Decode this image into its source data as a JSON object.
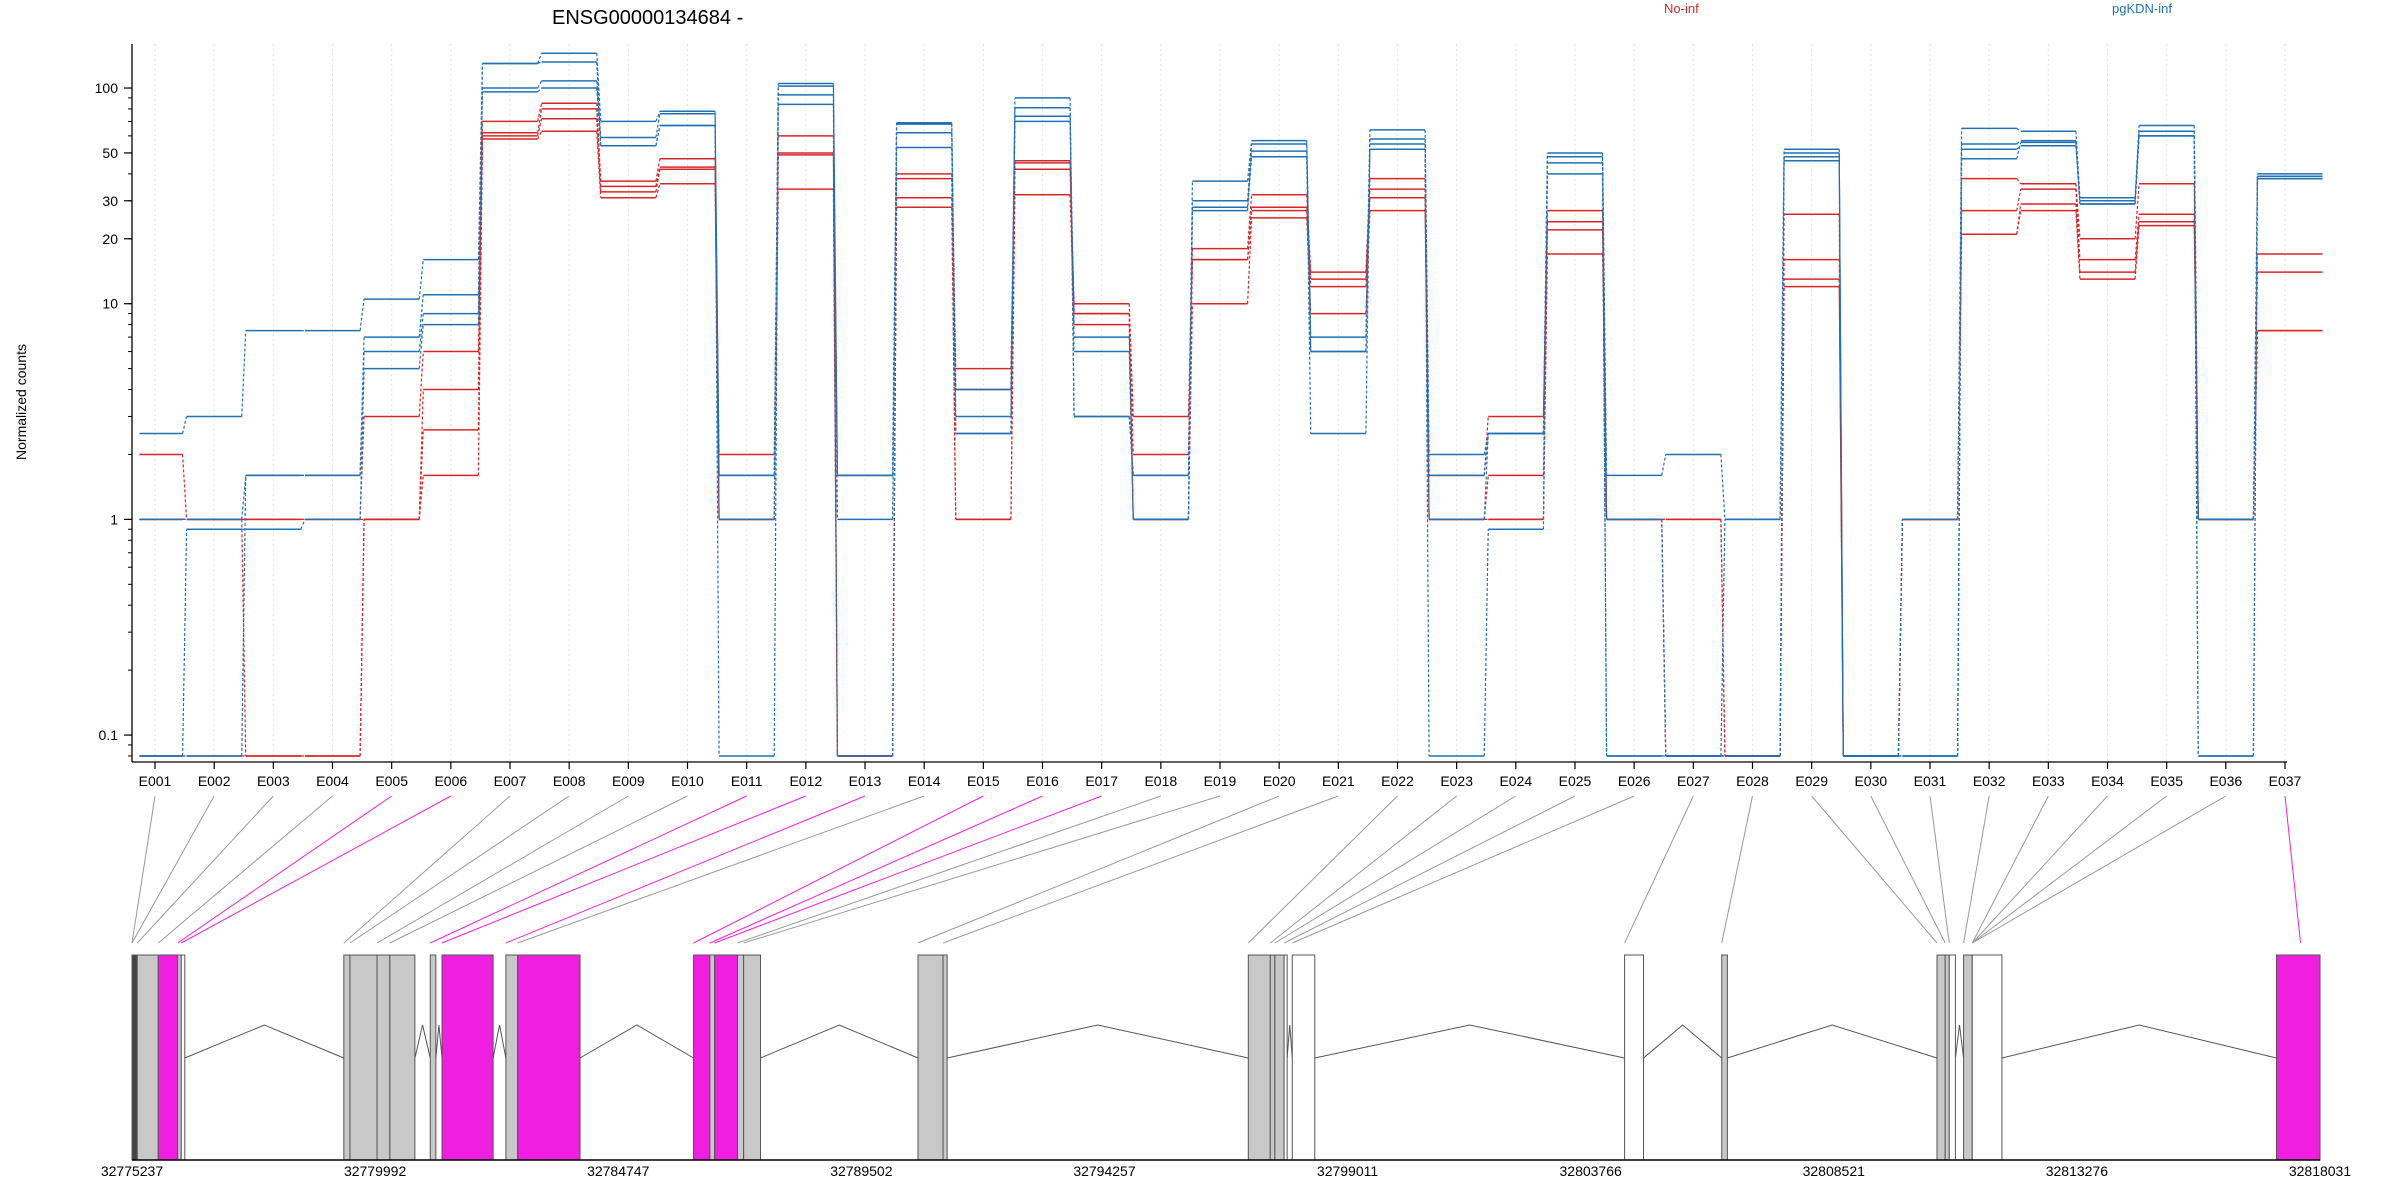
{
  "chart_data": {
    "type": "line",
    "title": "ENSG00000134684 -",
    "ylabel": "Normalized counts",
    "xlabel": "",
    "y_scale": "log",
    "ylim": [
      0.075,
      160
    ],
    "y_ticks": [
      0.1,
      1,
      10,
      20,
      30,
      50,
      100
    ],
    "y_tick_labels": [
      "0.1",
      "1",
      "10",
      "20",
      "30",
      "50",
      "100"
    ],
    "grid": "vertical dotted lines at each exon",
    "legend": [
      {
        "name": "No-inf",
        "color": "#d62728",
        "placement": "top"
      },
      {
        "name": "pgKDN-inf",
        "color": "#2171b5",
        "placement": "top-right"
      }
    ],
    "categories": [
      "E001",
      "E002",
      "E003",
      "E004",
      "E005",
      "E006",
      "E007",
      "E008",
      "E009",
      "E010",
      "E011",
      "E012",
      "E013",
      "E014",
      "E015",
      "E016",
      "E017",
      "E018",
      "E019",
      "E020",
      "E021",
      "E022",
      "E023",
      "E024",
      "E025",
      "E026",
      "E027",
      "E028",
      "E029",
      "E030",
      "E031",
      "E032",
      "E033",
      "E034",
      "E035",
      "E036",
      "E037"
    ],
    "series": [
      {
        "group": "No-inf",
        "color": "#d62728",
        "values": [
          2,
          1,
          1,
          1,
          3,
          6,
          70,
          85,
          37,
          47,
          2,
          60,
          1.6,
          40,
          5,
          46,
          10,
          3,
          18,
          32,
          14,
          38,
          1.6,
          3,
          27,
          1,
          1,
          0.08,
          26,
          0.08,
          1,
          38,
          36,
          20,
          36,
          1,
          17
        ]
      },
      {
        "group": "No-inf",
        "color": "#d62728",
        "values": [
          1,
          1,
          1,
          1,
          1,
          4,
          62,
          80,
          35,
          43,
          1,
          50,
          0.08,
          38,
          4,
          45,
          9,
          2,
          16,
          28,
          13,
          34,
          1,
          1.6,
          24,
          1,
          1,
          0.08,
          16,
          0.08,
          1,
          27,
          34,
          16,
          26,
          1,
          14
        ]
      },
      {
        "group": "No-inf",
        "color": "#d62728",
        "values": [
          1,
          1,
          0.08,
          0.08,
          1,
          2.6,
          60,
          72,
          33,
          42,
          1,
          49,
          0.08,
          31,
          1,
          42,
          9,
          1,
          16,
          27,
          12,
          31,
          1,
          1,
          22,
          1,
          0.08,
          0.08,
          13,
          0.08,
          1,
          21,
          29,
          14,
          24,
          1,
          7.5
        ]
      },
      {
        "group": "No-inf",
        "color": "#d62728",
        "values": [
          0.08,
          0.08,
          0.08,
          0.08,
          1,
          1.6,
          58,
          63,
          31,
          36,
          1,
          34,
          0.08,
          28,
          1,
          32,
          8,
          1,
          10,
          25,
          9,
          27,
          1,
          1,
          17,
          1,
          0.08,
          0.08,
          12,
          0.08,
          1,
          21,
          27,
          13,
          23,
          1,
          7.5
        ]
      },
      {
        "group": "pgKDN-inf",
        "color": "#2171b5",
        "values": [
          2.5,
          3,
          7.5,
          7.5,
          10.5,
          16,
          130,
          145,
          70,
          78,
          1.6,
          105,
          1.6,
          69,
          4,
          90,
          3,
          1.6,
          37,
          57,
          7,
          64,
          2,
          2.5,
          50,
          1.6,
          2,
          1,
          52,
          0.08,
          1,
          65,
          63,
          31,
          67,
          1,
          40
        ]
      },
      {
        "group": "pgKDN-inf",
        "color": "#2171b5",
        "values": [
          1,
          1,
          1.6,
          1.6,
          7,
          11,
          100,
          108,
          59,
          76,
          1.6,
          102,
          1.6,
          68,
          3,
          81,
          3,
          1.6,
          30,
          55,
          6,
          58,
          1.6,
          2.5,
          48,
          1,
          0.08,
          1,
          50,
          0.08,
          0.08,
          55,
          57,
          30,
          63,
          1,
          39
        ]
      },
      {
        "group": "pgKDN-inf",
        "color": "#2171b5",
        "values": [
          0.08,
          0.08,
          1.6,
          1.6,
          6,
          9,
          96,
          100,
          54,
          67,
          1,
          84,
          1,
          62,
          2.5,
          74,
          7,
          1,
          28,
          51,
          6,
          55,
          1,
          2.5,
          45,
          0.08,
          0.08,
          0.08,
          48,
          0.08,
          0.08,
          52,
          54,
          29,
          60,
          0.08,
          38
        ]
      },
      {
        "group": "pgKDN-inf",
        "color": "#2171b5",
        "values": [
          0.08,
          0.9,
          0.9,
          1,
          5,
          8,
          130,
          132,
          54,
          67,
          0.08,
          93,
          0.08,
          53,
          2.5,
          70,
          6,
          1,
          27,
          48,
          2.5,
          52,
          0.08,
          0.9,
          40,
          0.08,
          0.08,
          0.08,
          46,
          0.08,
          0.08,
          47,
          56,
          29,
          60,
          0.08,
          38
        ]
      }
    ],
    "gene_model": {
      "exons": [
        {
          "start": 32775237,
          "end": 32775340,
          "color": "#444444"
        },
        {
          "start": 32775340,
          "end": 32775750,
          "color": "#c8c8c8"
        },
        {
          "start": 32775750,
          "end": 32776130,
          "color": "#f01ee0"
        },
        {
          "start": 32776130,
          "end": 32776200,
          "color": "#c8c8c8"
        },
        {
          "start": 32776200,
          "end": 32776270,
          "color": "#ffffff"
        },
        {
          "start": 32779380,
          "end": 32779500,
          "color": "#c8c8c8"
        },
        {
          "start": 32779500,
          "end": 32780030,
          "color": "#c8c8c8"
        },
        {
          "start": 32780030,
          "end": 32780280,
          "color": "#c8c8c8"
        },
        {
          "start": 32780280,
          "end": 32780770,
          "color": "#c8c8c8"
        },
        {
          "start": 32781070,
          "end": 32781180,
          "color": "#c8c8c8"
        },
        {
          "start": 32781300,
          "end": 32782300,
          "color": "#f01ee0"
        },
        {
          "start": 32782550,
          "end": 32782780,
          "color": "#c8c8c8"
        },
        {
          "start": 32782780,
          "end": 32784000,
          "color": "#f01ee0"
        },
        {
          "start": 32786220,
          "end": 32786540,
          "color": "#f01ee0"
        },
        {
          "start": 32786540,
          "end": 32786630,
          "color": "#c8c8c8"
        },
        {
          "start": 32786630,
          "end": 32787080,
          "color": "#f01ee0"
        },
        {
          "start": 32787080,
          "end": 32787200,
          "color": "#c8c8c8"
        },
        {
          "start": 32787200,
          "end": 32787530,
          "color": "#c8c8c8"
        },
        {
          "start": 32790610,
          "end": 32791100,
          "color": "#c8c8c8"
        },
        {
          "start": 32791100,
          "end": 32791180,
          "color": "#c8c8c8"
        },
        {
          "start": 32797070,
          "end": 32797500,
          "color": "#c8c8c8"
        },
        {
          "start": 32797500,
          "end": 32797590,
          "color": "#c8c8c8"
        },
        {
          "start": 32797590,
          "end": 32797770,
          "color": "#c8c8c8"
        },
        {
          "start": 32797770,
          "end": 32797830,
          "color": "#ffffff"
        },
        {
          "start": 32797930,
          "end": 32798370,
          "color": "#ffffff"
        },
        {
          "start": 32804430,
          "end": 32804800,
          "color": "#ffffff"
        },
        {
          "start": 32806330,
          "end": 32806440,
          "color": "#c8c8c8"
        },
        {
          "start": 32810540,
          "end": 32810700,
          "color": "#c8c8c8"
        },
        {
          "start": 32810700,
          "end": 32810780,
          "color": "#c8c8c8"
        },
        {
          "start": 32810780,
          "end": 32810900,
          "color": "#ffffff"
        },
        {
          "start": 32811060,
          "end": 32811230,
          "color": "#c8c8c8"
        },
        {
          "start": 32811230,
          "end": 32811810,
          "color": "#ffffff"
        },
        {
          "start": 32817180,
          "end": 32818031,
          "color": "#f01ee0"
        }
      ],
      "exon_anchor": [
        "32775237",
        "32775237",
        "32775340",
        "32775750",
        "32776130",
        "32776200",
        "32779380",
        "32779500",
        "32780030",
        "32780280",
        "32781070",
        "32781300",
        "32782550",
        "32782780",
        "32786220",
        "32786540",
        "32786630",
        "32787080",
        "32787200",
        "32790610",
        "32791100",
        "32797070",
        "32797500",
        "32797590",
        "32797770",
        "32797930",
        "32804430",
        "32806330",
        "32810540",
        "32810700",
        "32810780",
        "32811060",
        "32811230",
        "32811230",
        "32811230",
        "32811230",
        "32817650"
      ],
      "exon_anchor_color": [
        "#999999",
        "#999999",
        "#999999",
        "#999999",
        "#f01ee0",
        "#f01ee0",
        "#999999",
        "#999999",
        "#999999",
        "#999999",
        "#f01ee0",
        "#f01ee0",
        "#f01ee0",
        "#999999",
        "#f01ee0",
        "#f01ee0",
        "#f01ee0",
        "#999999",
        "#999999",
        "#999999",
        "#999999",
        "#999999",
        "#999999",
        "#999999",
        "#999999",
        "#999999",
        "#999999",
        "#999999",
        "#999999",
        "#999999",
        "#999999",
        "#999999",
        "#999999",
        "#999999",
        "#999999",
        "#999999",
        "#f01ee0"
      ],
      "axis_start": 32775237,
      "axis_end": 32818031,
      "axis_ticks": [
        "32775237",
        "32779992",
        "32784747",
        "32789502",
        "32794257",
        "32799011",
        "32803766",
        "32808521",
        "32813276",
        "32818031"
      ]
    }
  }
}
